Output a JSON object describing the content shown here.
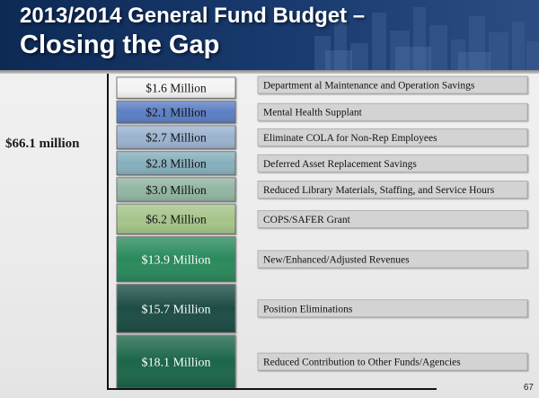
{
  "slide": {
    "title_line1": "2013/2014 General Fund Budget –",
    "title_line2": "Closing the Gap",
    "page_number": "67"
  },
  "chart_data": {
    "type": "bar",
    "orientation": "stacked-vertical",
    "total_label": "$66.1 million",
    "total_value": 66.1,
    "unit": "Million",
    "segments": [
      {
        "label": "$1.6 Million",
        "value": 1.6,
        "description": "Department al Maintenance and Operation Savings",
        "color": "#f4f4f4",
        "text_color": "#111111"
      },
      {
        "label": "$2.1 Million",
        "value": 2.1,
        "description": "Mental Health Supplant",
        "color": "#5b7fc4",
        "text_color": "#111111"
      },
      {
        "label": "$2.7 Million",
        "value": 2.7,
        "description": "Eliminate COLA for Non-Rep Employees",
        "color": "#9bb3cf",
        "text_color": "#111111"
      },
      {
        "label": "$2.8 Million",
        "value": 2.8,
        "description": "Deferred Asset Replacement Savings",
        "color": "#86afbc",
        "text_color": "#111111"
      },
      {
        "label": "$3.0 Million",
        "value": 3.0,
        "description": "Reduced Library Materials, Staffing, and Service Hours",
        "color": "#92b5a2",
        "text_color": "#111111"
      },
      {
        "label": "$6.2 Million",
        "value": 6.2,
        "description": "COPS/SAFER Grant",
        "color": "#a5c48a",
        "text_color": "#111111"
      },
      {
        "label": "$13.9 Million",
        "value": 13.9,
        "description": "New/Enhanced/Adjusted Revenues",
        "color": "#2a8a5c",
        "text_color": "#ffffff"
      },
      {
        "label": "$15.7 Million",
        "value": 15.7,
        "description": "Position Eliminations",
        "color": "#1c4d44",
        "text_color": "#ffffff"
      },
      {
        "label": "$18.1 Million",
        "value": 18.1,
        "description": "Reduced Contribution to Other Funds/Agencies",
        "color": "#1b6648",
        "text_color": "#ffffff"
      }
    ],
    "desc_box_color": "#d3d3d3",
    "axis_color": "#111111"
  }
}
